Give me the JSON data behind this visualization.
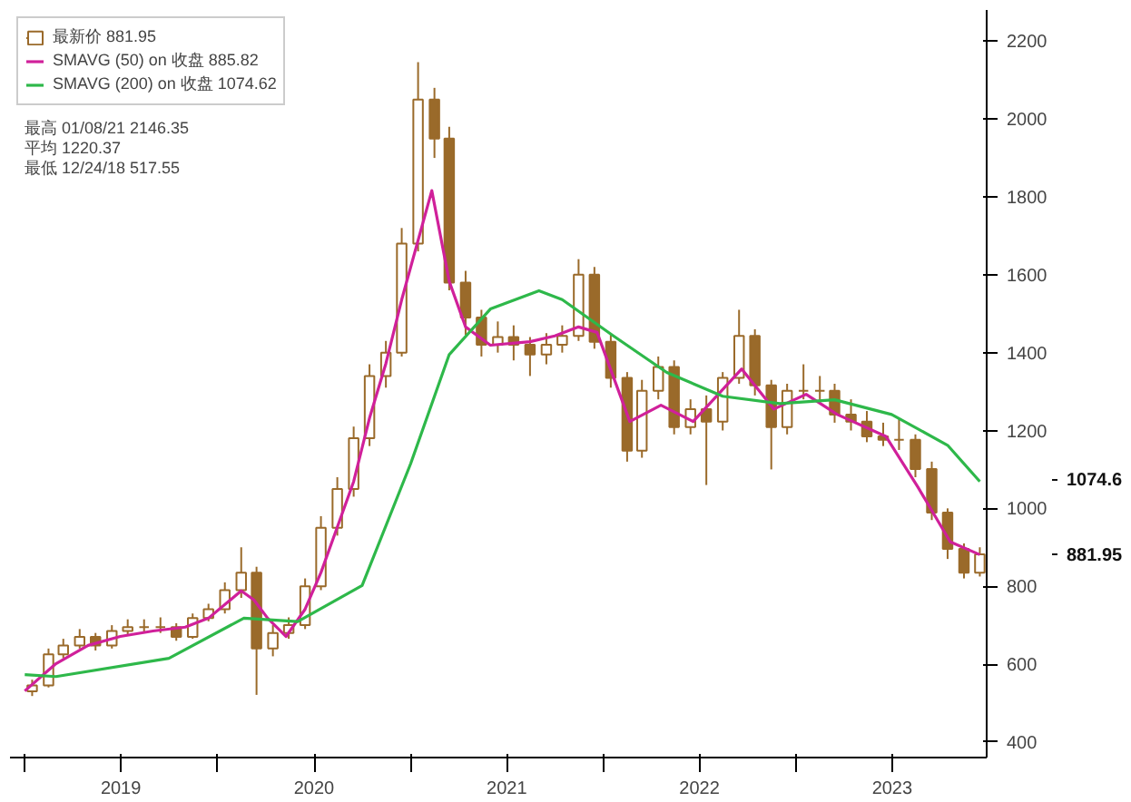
{
  "chart_data": {
    "type": "candlestick",
    "xlim": [
      "2018-12-04",
      "2023-12-28"
    ],
    "ylim": [
      360,
      2280
    ],
    "xticks": [
      {
        "value": "2019-07-02",
        "label": "2019"
      },
      {
        "value": "2020-07-02",
        "label": "2020"
      },
      {
        "value": "2021-07-02",
        "label": "2021"
      },
      {
        "value": "2022-07-02",
        "label": "2022"
      },
      {
        "value": "2023-07-02",
        "label": "2023"
      },
      {
        "value": "2019-01-01",
        "label": null
      },
      {
        "value": "2020-01-01",
        "label": null
      },
      {
        "value": "2021-01-01",
        "label": null
      },
      {
        "value": "2022-01-01",
        "label": null
      },
      {
        "value": "2023-01-01",
        "label": null
      }
    ],
    "yticks": [
      400,
      600,
      800,
      1000,
      1200,
      1400,
      1600,
      1800,
      2000,
      2200
    ],
    "grid": false,
    "legend": "top left",
    "annotations": [
      "最高 01/08/21 2146.35",
      "平均 1220.37",
      "最低 12/24/18 517.55"
    ],
    "y2lim": [
      360,
      2280
    ],
    "y2ticks": [
      1074.6,
      881.95
    ],
    "series": [
      {
        "name": "最新价 881.95",
        "type": "candlestick",
        "color": "#9a6a2a",
        "x": [
          "2019-01-15",
          "2019-02-15",
          "2019-03-15",
          "2019-04-15",
          "2019-05-15",
          "2019-06-15",
          "2019-07-15",
          "2019-08-15",
          "2019-09-15",
          "2019-10-15",
          "2019-11-15",
          "2019-12-15",
          "2020-01-15",
          "2020-02-15",
          "2020-03-15",
          "2020-04-15",
          "2020-05-15",
          "2020-06-15",
          "2020-07-15",
          "2020-08-15",
          "2020-09-15",
          "2020-10-15",
          "2020-11-15",
          "2020-12-15",
          "2021-01-15",
          "2021-02-15",
          "2021-03-15",
          "2021-04-15",
          "2021-05-15",
          "2021-06-15",
          "2021-07-15",
          "2021-08-15",
          "2021-09-15",
          "2021-10-15",
          "2021-11-15",
          "2021-12-15",
          "2022-01-15",
          "2022-02-15",
          "2022-03-15",
          "2022-04-15",
          "2022-05-15",
          "2022-06-15",
          "2022-07-15",
          "2022-08-15",
          "2022-09-15",
          "2022-10-15",
          "2022-11-15",
          "2022-12-15",
          "2023-01-15",
          "2023-02-15",
          "2023-03-15",
          "2023-04-15",
          "2023-05-15",
          "2023-06-15",
          "2023-07-15",
          "2023-08-15",
          "2023-09-15",
          "2023-10-15",
          "2023-11-15",
          "2023-12-15"
        ],
        "ohlc": [
          [
            530,
            560,
            518,
            545
          ],
          [
            545,
            640,
            540,
            625
          ],
          [
            625,
            665,
            615,
            648
          ],
          [
            648,
            690,
            640,
            670
          ],
          [
            670,
            680,
            635,
            648
          ],
          [
            648,
            700,
            640,
            685
          ],
          [
            685,
            715,
            675,
            695
          ],
          [
            695,
            715,
            680,
            695
          ],
          [
            695,
            720,
            680,
            695
          ],
          [
            695,
            705,
            660,
            670
          ],
          [
            670,
            730,
            665,
            718
          ],
          [
            718,
            755,
            710,
            741
          ],
          [
            741,
            810,
            730,
            790
          ],
          [
            790,
            900,
            770,
            835
          ],
          [
            835,
            850,
            521,
            640
          ],
          [
            640,
            700,
            620,
            680
          ],
          [
            680,
            720,
            665,
            700
          ],
          [
            700,
            820,
            690,
            800
          ],
          [
            800,
            980,
            790,
            950
          ],
          [
            950,
            1080,
            930,
            1050
          ],
          [
            1050,
            1210,
            1030,
            1180
          ],
          [
            1180,
            1370,
            1160,
            1340
          ],
          [
            1340,
            1430,
            1310,
            1400
          ],
          [
            1400,
            1720,
            1390,
            1680
          ],
          [
            1680,
            2146,
            1660,
            2050
          ],
          [
            2050,
            2080,
            1900,
            1950
          ],
          [
            1950,
            1980,
            1560,
            1580
          ],
          [
            1580,
            1610,
            1445,
            1490
          ],
          [
            1490,
            1510,
            1390,
            1420
          ],
          [
            1420,
            1480,
            1400,
            1440
          ],
          [
            1440,
            1470,
            1380,
            1420
          ],
          [
            1420,
            1440,
            1340,
            1395
          ],
          [
            1395,
            1450,
            1370,
            1420
          ],
          [
            1420,
            1470,
            1400,
            1443
          ],
          [
            1443,
            1640,
            1430,
            1600
          ],
          [
            1600,
            1620,
            1410,
            1428
          ],
          [
            1428,
            1450,
            1310,
            1335
          ],
          [
            1335,
            1350,
            1120,
            1148
          ],
          [
            1148,
            1330,
            1130,
            1302
          ],
          [
            1302,
            1390,
            1280,
            1363
          ],
          [
            1363,
            1380,
            1190,
            1209
          ],
          [
            1209,
            1280,
            1190,
            1255
          ],
          [
            1255,
            1290,
            1060,
            1223
          ],
          [
            1223,
            1350,
            1200,
            1335
          ],
          [
            1335,
            1510,
            1320,
            1443
          ],
          [
            1443,
            1460,
            1290,
            1316
          ],
          [
            1316,
            1330,
            1100,
            1209
          ],
          [
            1209,
            1320,
            1190,
            1302
          ],
          [
            1302,
            1370,
            1280,
            1302
          ],
          [
            1302,
            1340,
            1270,
            1302
          ],
          [
            1302,
            1320,
            1220,
            1241
          ],
          [
            1241,
            1280,
            1200,
            1223
          ],
          [
            1223,
            1250,
            1170,
            1185
          ],
          [
            1185,
            1220,
            1160,
            1176
          ],
          [
            1176,
            1230,
            1150,
            1176
          ],
          [
            1176,
            1190,
            1080,
            1101
          ],
          [
            1101,
            1120,
            970,
            989
          ],
          [
            989,
            1000,
            870,
            896
          ],
          [
            896,
            910,
            820,
            835
          ],
          [
            835,
            900,
            825,
            882
          ]
        ]
      },
      {
        "name": "SMAVG (50) on 收盘 885.82",
        "type": "line",
        "color": "#d0209a",
        "x": [
          "2019-01-01",
          "2019-03-01",
          "2019-05-01",
          "2019-07-01",
          "2019-09-01",
          "2019-11-01",
          "2019-12-15",
          "2020-02-15",
          "2020-03-10",
          "2020-04-05",
          "2020-05-10",
          "2020-06-15",
          "2020-07-15",
          "2020-08-15",
          "2020-09-15",
          "2020-10-15",
          "2020-11-15",
          "2020-12-15",
          "2021-02-10",
          "2021-03-15",
          "2021-04-15",
          "2021-06-01",
          "2021-08-15",
          "2021-10-01",
          "2021-11-15",
          "2021-12-20",
          "2022-02-20",
          "2022-04-20",
          "2022-06-20",
          "2022-09-20",
          "2022-11-20",
          "2023-01-20",
          "2023-03-20",
          "2023-06-20",
          "2023-08-20",
          "2023-10-20",
          "2023-12-15"
        ],
        "values": [
          531,
          601,
          648,
          671,
          685,
          695,
          718,
          788,
          765,
          718,
          671,
          741,
          835,
          952,
          1069,
          1232,
          1372,
          1536,
          1816,
          1583,
          1466,
          1419,
          1428,
          1443,
          1466,
          1452,
          1223,
          1265,
          1223,
          1358,
          1255,
          1293,
          1241,
          1185,
          1054,
          914,
          881
        ]
      },
      {
        "name": "SMAVG (200) on 收盘 1074.62",
        "type": "line",
        "color": "#2eb84a",
        "x": [
          "2019-01-01",
          "2019-03-01",
          "2019-10-01",
          "2020-02-20",
          "2020-06-01",
          "2020-10-01",
          "2021-01-01",
          "2021-03-15",
          "2021-06-01",
          "2021-09-01",
          "2021-10-15",
          "2022-01-20",
          "2022-05-01",
          "2022-08-15",
          "2022-12-01",
          "2023-03-15",
          "2023-07-01",
          "2023-10-15",
          "2023-12-15"
        ],
        "values": [
          573,
          568,
          615,
          718,
          709,
          802,
          1115,
          1395,
          1512,
          1559,
          1536,
          1443,
          1349,
          1288,
          1269,
          1279,
          1241,
          1162,
          1069
        ]
      }
    ]
  }
}
